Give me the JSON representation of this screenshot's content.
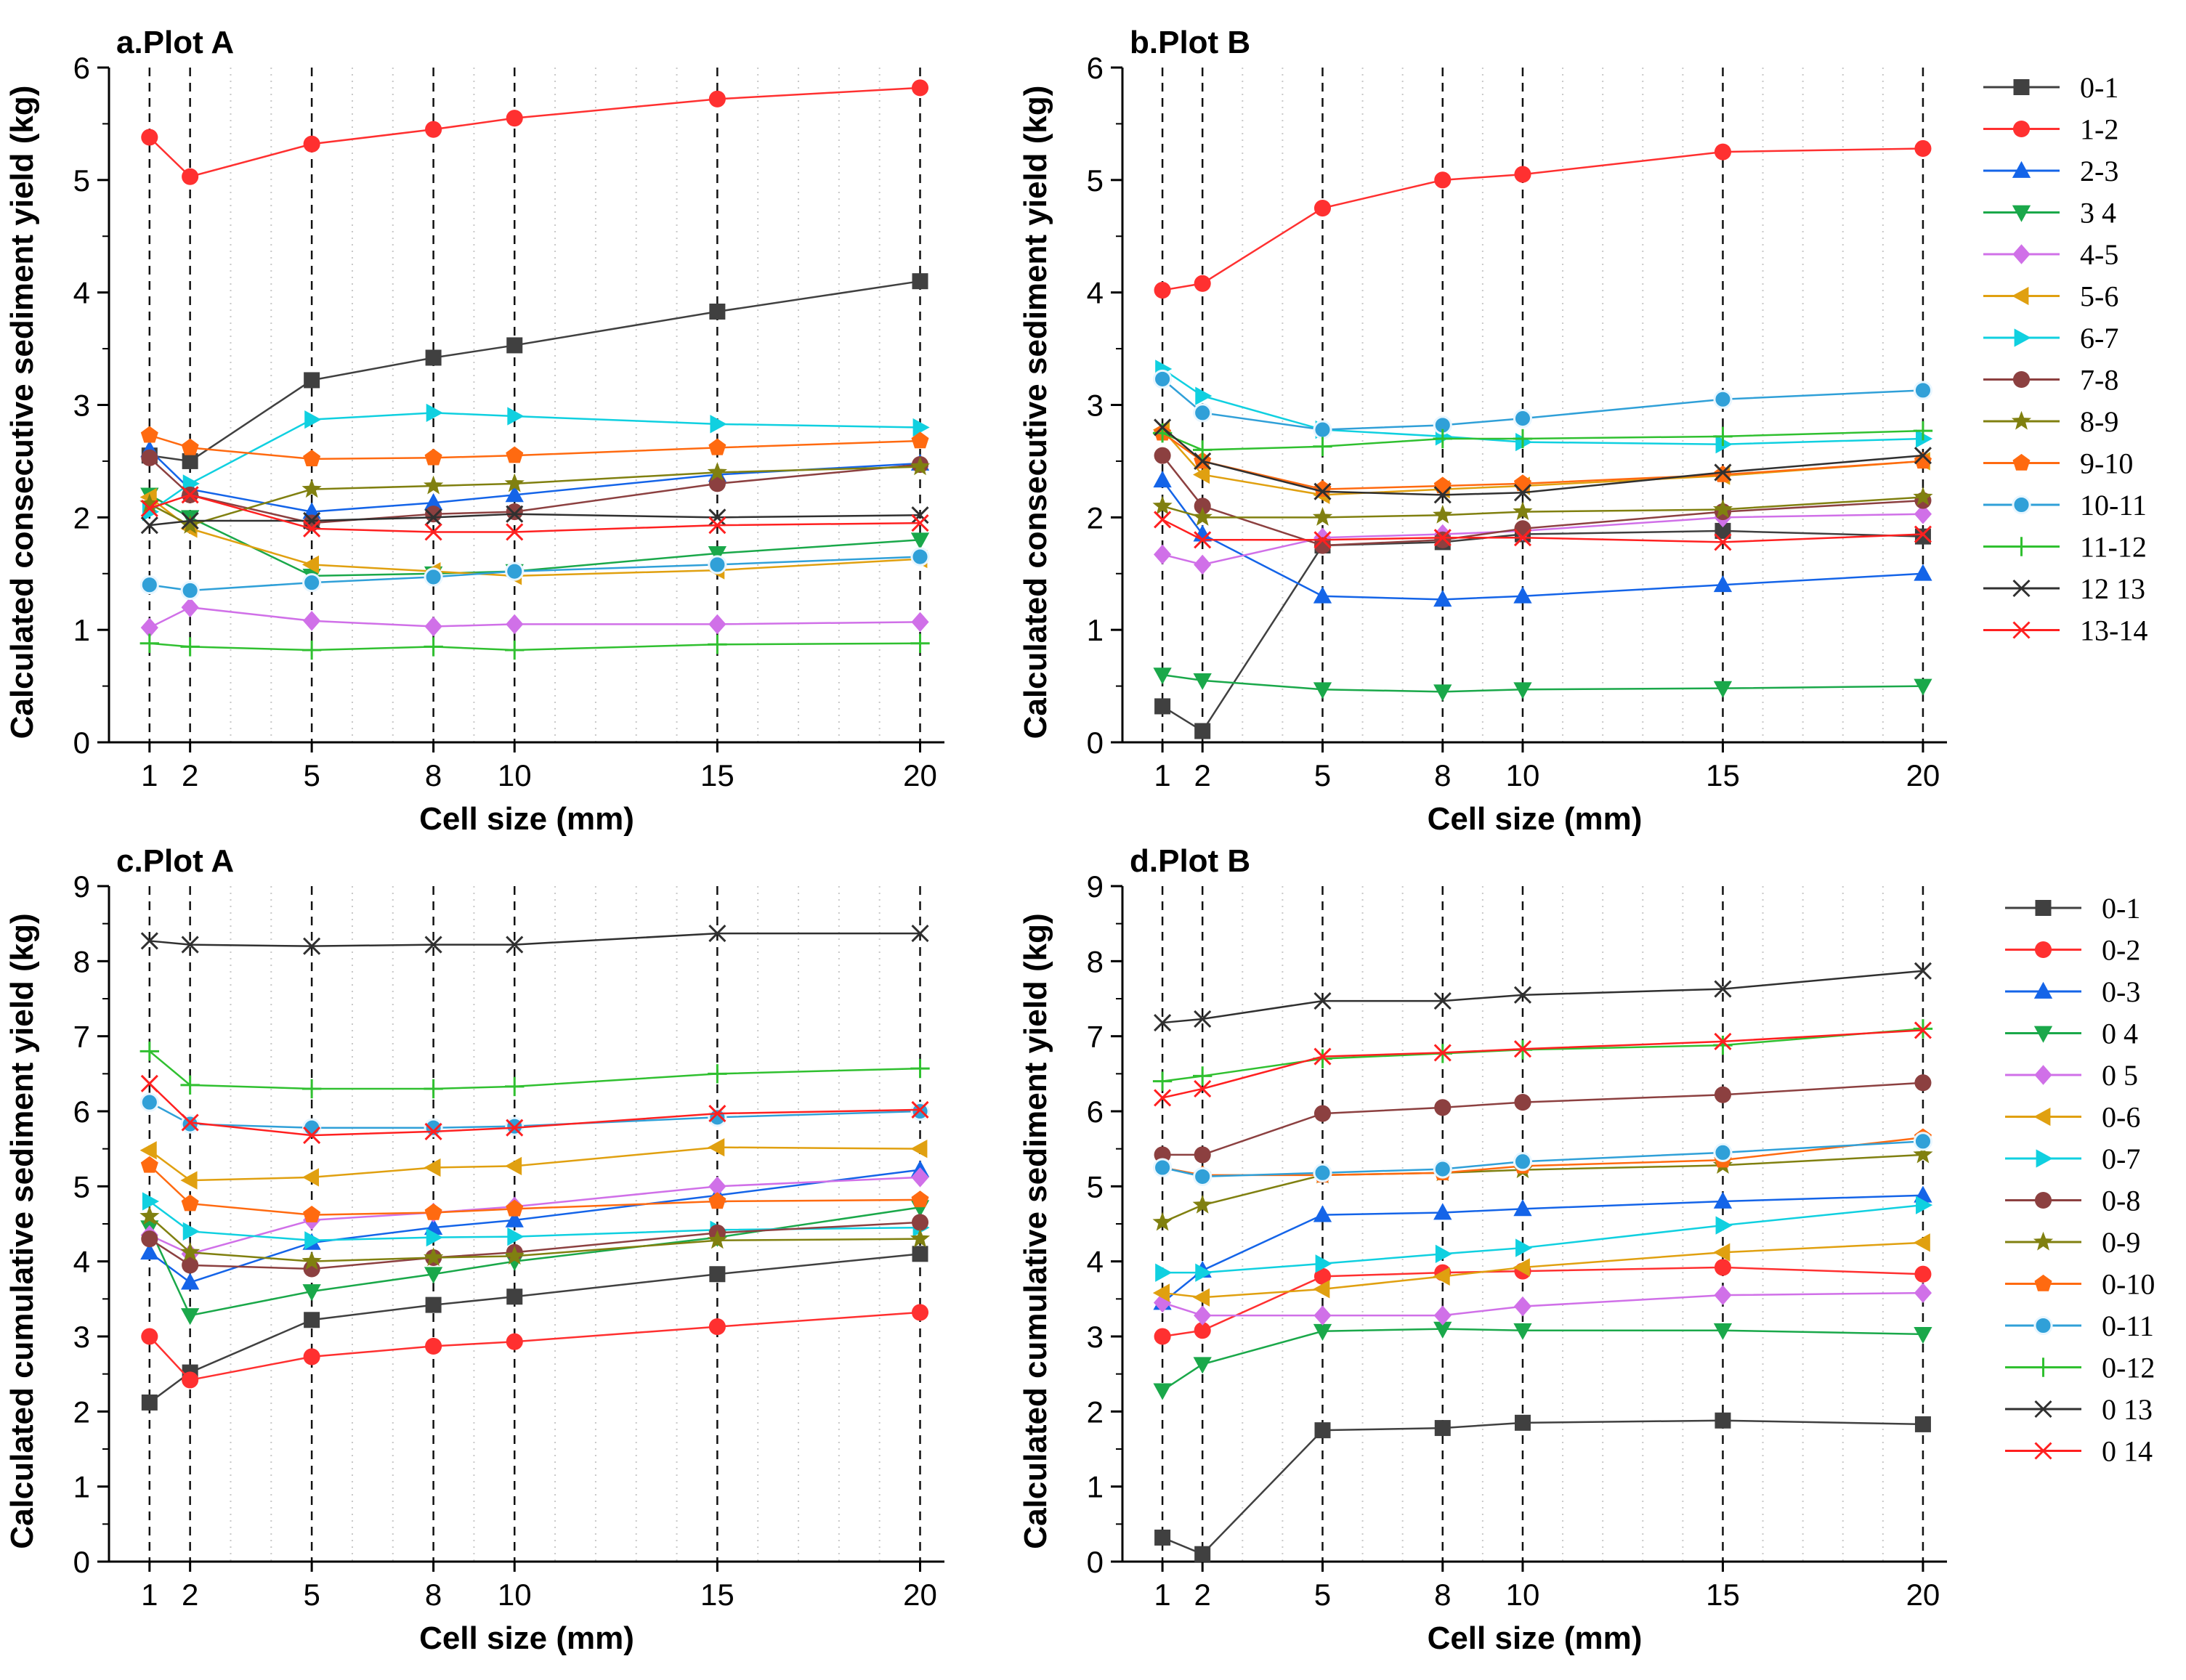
{
  "figure": {
    "background": "#ffffff"
  },
  "series_colors": {
    "s01": "#404040",
    "s02": "#ff3030",
    "s03": "#1464e8",
    "s04": "#1aa84a",
    "s05": "#d070e8",
    "s06": "#e0a010",
    "s07": "#10d0e0",
    "s08": "#8c4040",
    "s09": "#808010",
    "s10": "#ff6a10",
    "s11": "#30a0d8",
    "s12": "#30c030",
    "s13": "#303030",
    "s14": "#ff2020"
  },
  "markers": {
    "s01": "square",
    "s02": "circle",
    "s03": "triangle-up",
    "s04": "triangle-down",
    "s05": "diamond",
    "s06": "triangle-left",
    "s07": "triangle-right",
    "s08": "circle",
    "s09": "star",
    "s10": "pentagon",
    "s11": "circle-hollow",
    "s12": "plus",
    "s13": "x",
    "s14": "x"
  },
  "chart_data": [
    {
      "id": "a",
      "type": "line",
      "title": "a.Plot A",
      "xlabel": "Cell size (mm)",
      "ylabel": "Calculated consecutive sediment yield (kg)",
      "x": [
        1,
        2,
        5,
        8,
        10,
        15,
        20
      ],
      "xlim": [
        0,
        20.6
      ],
      "ylim": [
        0,
        6
      ],
      "yticks": [
        0,
        1,
        2,
        3,
        4,
        5,
        6
      ],
      "xticks": [
        1,
        2,
        5,
        8,
        10,
        15,
        20
      ],
      "series": [
        {
          "key": "s01",
          "name": "0-1",
          "values": [
            2.55,
            2.5,
            3.22,
            3.42,
            3.53,
            3.83,
            4.1
          ]
        },
        {
          "key": "s02",
          "name": "1-2",
          "values": [
            5.38,
            5.03,
            5.32,
            5.45,
            5.55,
            5.72,
            5.82
          ]
        },
        {
          "key": "s03",
          "name": "2-3",
          "values": [
            2.6,
            2.25,
            2.05,
            2.13,
            2.2,
            2.38,
            2.48
          ]
        },
        {
          "key": "s04",
          "name": "3-4",
          "values": [
            2.2,
            2.0,
            1.48,
            1.5,
            1.52,
            1.68,
            1.8
          ]
        },
        {
          "key": "s05",
          "name": "4-5",
          "values": [
            1.02,
            1.2,
            1.08,
            1.03,
            1.05,
            1.05,
            1.07
          ]
        },
        {
          "key": "s06",
          "name": "5-6",
          "values": [
            2.18,
            1.9,
            1.58,
            1.52,
            1.48,
            1.53,
            1.63
          ]
        },
        {
          "key": "s07",
          "name": "6-7",
          "values": [
            2.05,
            2.3,
            2.87,
            2.93,
            2.9,
            2.83,
            2.8
          ]
        },
        {
          "key": "s08",
          "name": "7-8",
          "values": [
            2.53,
            2.2,
            1.95,
            2.03,
            2.05,
            2.3,
            2.47
          ]
        },
        {
          "key": "s09",
          "name": "8-9",
          "values": [
            2.12,
            1.93,
            2.25,
            2.28,
            2.3,
            2.4,
            2.45
          ]
        },
        {
          "key": "s10",
          "name": "9-10",
          "values": [
            2.73,
            2.62,
            2.52,
            2.53,
            2.55,
            2.62,
            2.68
          ]
        },
        {
          "key": "s11",
          "name": "10-11",
          "values": [
            1.4,
            1.35,
            1.42,
            1.47,
            1.52,
            1.58,
            1.65
          ]
        },
        {
          "key": "s12",
          "name": "11-12",
          "values": [
            0.88,
            0.85,
            0.82,
            0.85,
            0.82,
            0.87,
            0.88
          ]
        },
        {
          "key": "s13",
          "name": "12-13",
          "values": [
            1.93,
            1.97,
            1.97,
            2.0,
            2.03,
            2.0,
            2.02
          ]
        },
        {
          "key": "s14",
          "name": "13-14",
          "values": [
            2.08,
            2.2,
            1.9,
            1.87,
            1.87,
            1.93,
            1.95
          ]
        }
      ]
    },
    {
      "id": "b",
      "type": "line",
      "title": "b.Plot B",
      "xlabel": "Cell size (mm)",
      "ylabel": "Calculated consecutive sediment yield (kg)",
      "x": [
        1,
        2,
        5,
        8,
        10,
        15,
        20
      ],
      "xlim": [
        0,
        20.6
      ],
      "ylim": [
        0,
        6
      ],
      "yticks": [
        0,
        1,
        2,
        3,
        4,
        5,
        6
      ],
      "xticks": [
        1,
        2,
        5,
        8,
        10,
        15,
        20
      ],
      "series": [
        {
          "key": "s01",
          "name": "0-1",
          "values": [
            0.32,
            0.1,
            1.75,
            1.78,
            1.85,
            1.88,
            1.83
          ]
        },
        {
          "key": "s02",
          "name": "1-2",
          "values": [
            4.02,
            4.08,
            4.75,
            5.0,
            5.05,
            5.25,
            5.28
          ]
        },
        {
          "key": "s03",
          "name": "2-3",
          "values": [
            2.33,
            1.85,
            1.3,
            1.27,
            1.3,
            1.4,
            1.5
          ]
        },
        {
          "key": "s04",
          "name": "3-4",
          "values": [
            0.6,
            0.55,
            0.47,
            0.45,
            0.47,
            0.48,
            0.5
          ]
        },
        {
          "key": "s05",
          "name": "4-5",
          "values": [
            1.67,
            1.58,
            1.82,
            1.85,
            1.88,
            2.0,
            2.03
          ]
        },
        {
          "key": "s06",
          "name": "5-6",
          "values": [
            2.78,
            2.38,
            2.2,
            2.25,
            2.28,
            2.37,
            2.5
          ]
        },
        {
          "key": "s07",
          "name": "6-7",
          "values": [
            3.32,
            3.08,
            2.78,
            2.72,
            2.67,
            2.65,
            2.7
          ]
        },
        {
          "key": "s08",
          "name": "7-8",
          "values": [
            2.55,
            2.1,
            1.75,
            1.8,
            1.9,
            2.05,
            2.15
          ]
        },
        {
          "key": "s09",
          "name": "8-9",
          "values": [
            2.1,
            2.0,
            2.0,
            2.02,
            2.05,
            2.07,
            2.18
          ]
        },
        {
          "key": "s10",
          "name": "9-10",
          "values": [
            2.75,
            2.5,
            2.25,
            2.28,
            2.3,
            2.38,
            2.5
          ]
        },
        {
          "key": "s11",
          "name": "10-11",
          "values": [
            3.23,
            2.93,
            2.78,
            2.82,
            2.88,
            3.05,
            3.13
          ]
        },
        {
          "key": "s12",
          "name": "11-12",
          "values": [
            2.75,
            2.6,
            2.63,
            2.7,
            2.7,
            2.72,
            2.77
          ]
        },
        {
          "key": "s13",
          "name": "12-13",
          "values": [
            2.8,
            2.5,
            2.23,
            2.2,
            2.22,
            2.4,
            2.55
          ]
        },
        {
          "key": "s14",
          "name": "13-14",
          "values": [
            1.98,
            1.8,
            1.8,
            1.82,
            1.82,
            1.78,
            1.85
          ]
        }
      ]
    },
    {
      "id": "c",
      "type": "line",
      "title": "c.Plot A",
      "xlabel": "Cell size (mm)",
      "ylabel": "Calculated cumulative sediment yield (kg)",
      "x": [
        1,
        2,
        5,
        8,
        10,
        15,
        20
      ],
      "xlim": [
        0,
        20.6
      ],
      "ylim": [
        0,
        9
      ],
      "yticks": [
        0,
        1,
        2,
        3,
        4,
        5,
        6,
        7,
        8,
        9
      ],
      "xticks": [
        1,
        2,
        5,
        8,
        10,
        15,
        20
      ],
      "series": [
        {
          "key": "s01",
          "name": "0-1",
          "values": [
            2.12,
            2.52,
            3.22,
            3.42,
            3.53,
            3.83,
            4.1
          ]
        },
        {
          "key": "s02",
          "name": "0-2",
          "values": [
            3.0,
            2.42,
            2.73,
            2.87,
            2.93,
            3.13,
            3.32
          ]
        },
        {
          "key": "s03",
          "name": "0-3",
          "values": [
            4.12,
            3.72,
            4.25,
            4.45,
            4.55,
            4.88,
            5.22
          ]
        },
        {
          "key": "s04",
          "name": "0-4",
          "values": [
            4.45,
            3.28,
            3.6,
            3.83,
            4.0,
            4.32,
            4.72
          ]
        },
        {
          "key": "s05",
          "name": "0-5",
          "values": [
            4.35,
            4.1,
            4.55,
            4.65,
            4.73,
            5.0,
            5.12
          ]
        },
        {
          "key": "s06",
          "name": "0-6",
          "values": [
            5.48,
            5.08,
            5.12,
            5.25,
            5.27,
            5.52,
            5.5
          ]
        },
        {
          "key": "s07",
          "name": "0-7",
          "values": [
            4.8,
            4.4,
            4.28,
            4.32,
            4.33,
            4.42,
            4.45
          ]
        },
        {
          "key": "s08",
          "name": "0-8",
          "values": [
            4.3,
            3.95,
            3.9,
            4.05,
            4.12,
            4.38,
            4.52
          ]
        },
        {
          "key": "s09",
          "name": "0-9",
          "values": [
            4.6,
            4.12,
            4.0,
            4.05,
            4.07,
            4.28,
            4.3
          ]
        },
        {
          "key": "s10",
          "name": "0-10",
          "values": [
            5.28,
            4.77,
            4.62,
            4.65,
            4.7,
            4.8,
            4.82
          ]
        },
        {
          "key": "s11",
          "name": "0-11",
          "values": [
            6.12,
            5.83,
            5.78,
            5.78,
            5.8,
            5.92,
            6.0
          ]
        },
        {
          "key": "s12",
          "name": "0-12",
          "values": [
            6.8,
            6.35,
            6.3,
            6.3,
            6.33,
            6.5,
            6.57
          ]
        },
        {
          "key": "s13",
          "name": "0-13",
          "values": [
            8.27,
            8.22,
            8.2,
            8.22,
            8.22,
            8.37,
            8.37
          ]
        },
        {
          "key": "s14",
          "name": "0-14",
          "values": [
            6.37,
            5.85,
            5.68,
            5.73,
            5.78,
            5.97,
            6.02
          ]
        }
      ]
    },
    {
      "id": "d",
      "type": "line",
      "title": "d.Plot B",
      "xlabel": "Cell size (mm)",
      "ylabel": "Calculated cumulative sediment yield (kg)",
      "x": [
        1,
        2,
        5,
        8,
        10,
        15,
        20
      ],
      "xlim": [
        0,
        20.6
      ],
      "ylim": [
        0,
        9
      ],
      "yticks": [
        0,
        1,
        2,
        3,
        4,
        5,
        6,
        7,
        8,
        9
      ],
      "xticks": [
        1,
        2,
        5,
        8,
        10,
        15,
        20
      ],
      "series": [
        {
          "key": "s01",
          "name": "0-1",
          "values": [
            0.32,
            0.1,
            1.75,
            1.78,
            1.85,
            1.88,
            1.83
          ]
        },
        {
          "key": "s02",
          "name": "0-2",
          "values": [
            3.0,
            3.08,
            3.8,
            3.85,
            3.87,
            3.92,
            3.83
          ]
        },
        {
          "key": "s03",
          "name": "0-3",
          "values": [
            3.45,
            3.88,
            4.62,
            4.65,
            4.7,
            4.8,
            4.88
          ]
        },
        {
          "key": "s04",
          "name": "0-4",
          "values": [
            2.28,
            2.63,
            3.07,
            3.1,
            3.08,
            3.08,
            3.03
          ]
        },
        {
          "key": "s05",
          "name": "0-5",
          "values": [
            3.45,
            3.28,
            3.28,
            3.28,
            3.4,
            3.55,
            3.58
          ]
        },
        {
          "key": "s06",
          "name": "0-6",
          "values": [
            3.58,
            3.52,
            3.63,
            3.8,
            3.92,
            4.12,
            4.25
          ]
        },
        {
          "key": "s07",
          "name": "0-7",
          "values": [
            3.85,
            3.85,
            3.97,
            4.1,
            4.18,
            4.48,
            4.75
          ]
        },
        {
          "key": "s08",
          "name": "0-8",
          "values": [
            5.42,
            5.42,
            5.97,
            6.05,
            6.12,
            6.22,
            6.38
          ]
        },
        {
          "key": "s09",
          "name": "0-9",
          "values": [
            4.52,
            4.75,
            5.15,
            5.18,
            5.22,
            5.28,
            5.42
          ]
        },
        {
          "key": "s10",
          "name": "0-10",
          "values": [
            5.25,
            5.15,
            5.15,
            5.18,
            5.27,
            5.35,
            5.65
          ]
        },
        {
          "key": "s11",
          "name": "0-11",
          "values": [
            5.25,
            5.13,
            5.18,
            5.23,
            5.33,
            5.45,
            5.6
          ]
        },
        {
          "key": "s12",
          "name": "0-12",
          "values": [
            6.4,
            6.47,
            6.7,
            6.77,
            6.82,
            6.88,
            7.1
          ]
        },
        {
          "key": "s13",
          "name": "0-13",
          "values": [
            7.18,
            7.23,
            7.47,
            7.47,
            7.55,
            7.63,
            7.87
          ]
        },
        {
          "key": "s14",
          "name": "0-14",
          "values": [
            6.18,
            6.3,
            6.73,
            6.78,
            6.83,
            6.93,
            7.08
          ]
        }
      ]
    }
  ],
  "legends": {
    "top": [
      "0-1",
      "1-2",
      "2-3",
      "3 4",
      "4-5",
      "5-6",
      "6-7",
      "7-8",
      "8-9",
      "9-10",
      "10-11",
      "11-12",
      "12 13",
      "13-14"
    ],
    "bottom": [
      "0-1",
      "0-2",
      "0-3",
      "0 4",
      "0 5",
      "0-6",
      "0-7",
      "0-8",
      "0-9",
      "0-10",
      "0-11",
      "0-12",
      "0 13",
      "0 14"
    ]
  }
}
